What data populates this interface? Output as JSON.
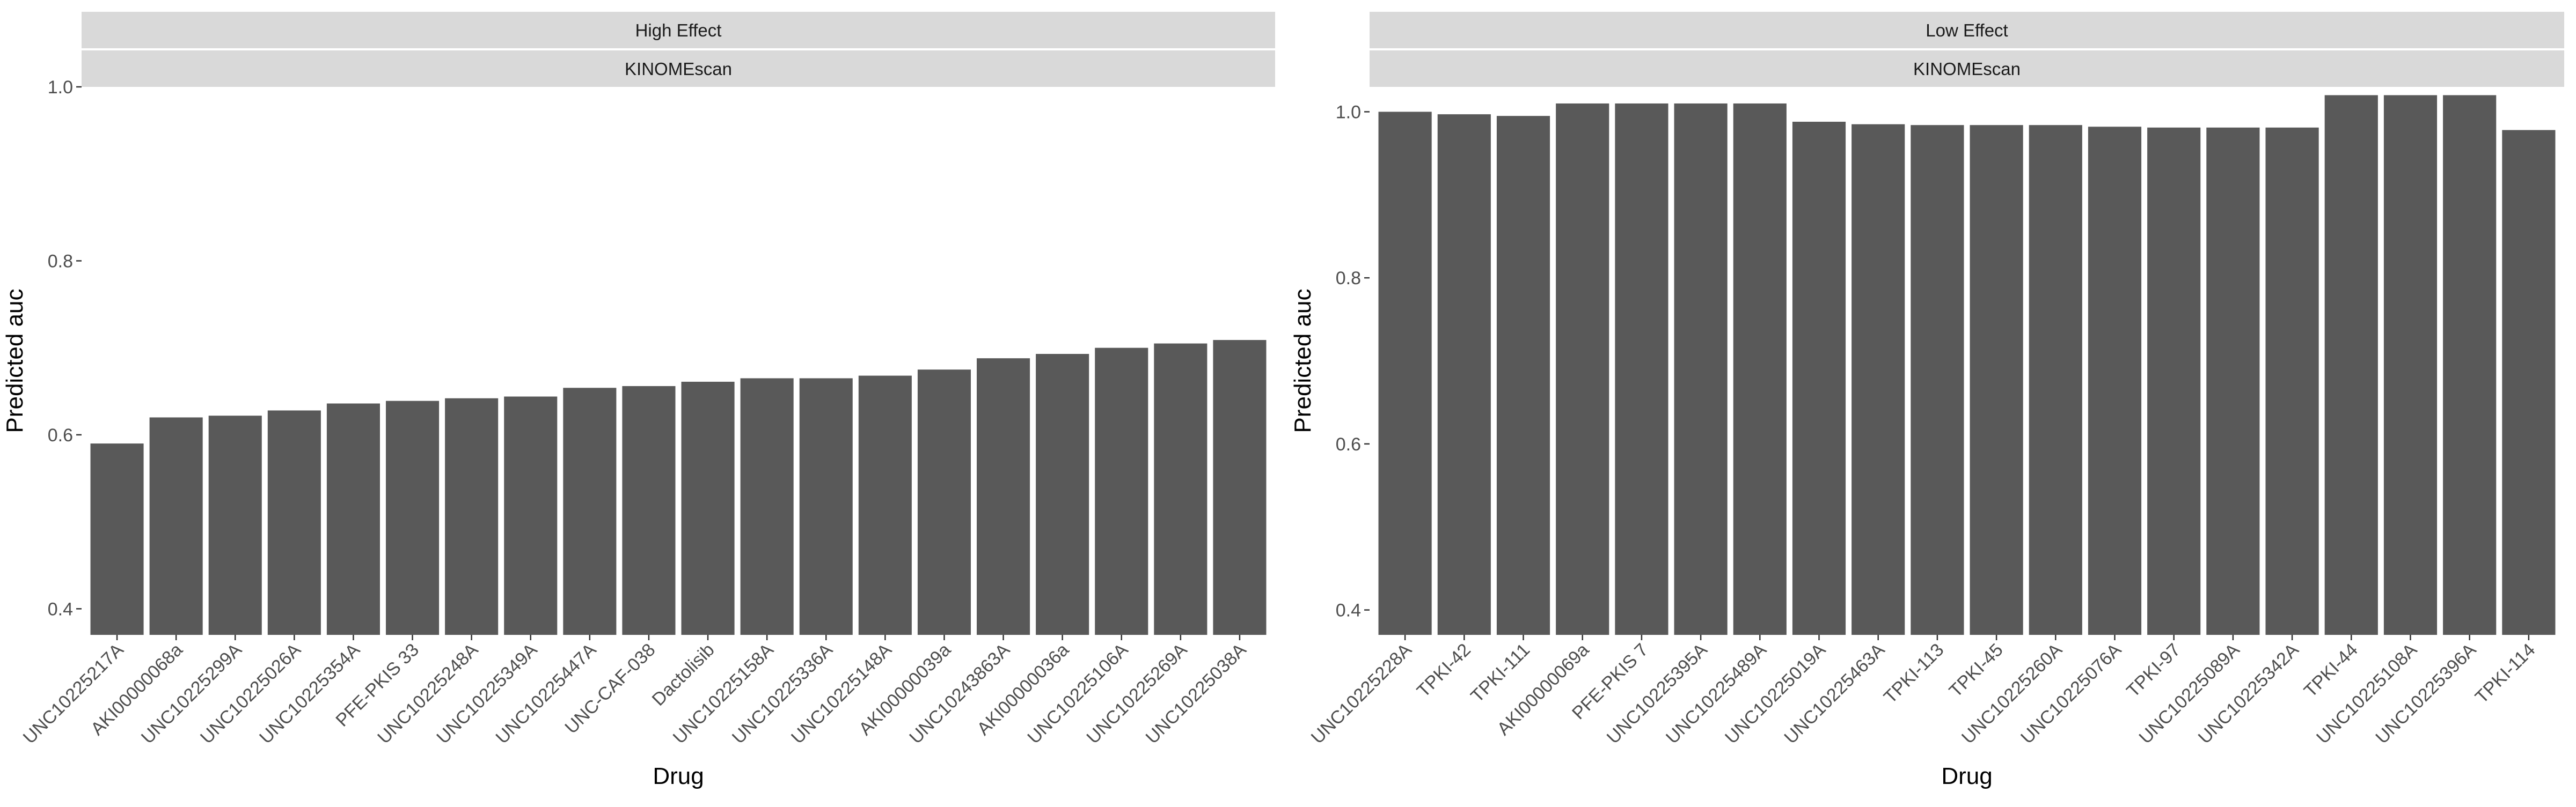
{
  "chart_data": [
    {
      "type": "bar",
      "facet_labels": [
        "High Effect",
        "KINOMEscan"
      ],
      "xlabel": "Drug",
      "ylabel": "Predicted auc",
      "ylim": [
        0.37,
        1.0
      ],
      "yticks": [
        0.4,
        0.6,
        0.8,
        1.0
      ],
      "ytick_labels": [
        "0.4",
        "0.6",
        "0.8",
        "1.0"
      ],
      "categories": [
        "UNC10225217A",
        "AKI00000068a",
        "UNC10225299A",
        "UNC10225026A",
        "UNC10225354A",
        "PFE-PKIS 33",
        "UNC10225248A",
        "UNC10225349A",
        "UNC10225447A",
        "UNC-CAF-038",
        "Dactolisib",
        "UNC10225158A",
        "UNC10225336A",
        "UNC10225148A",
        "AKI00000039a",
        "UNC10243863A",
        "AKI00000036a",
        "UNC10225106A",
        "UNC10225269A",
        "UNC10225038A"
      ],
      "values": [
        0.59,
        0.62,
        0.622,
        0.628,
        0.636,
        0.639,
        0.642,
        0.644,
        0.654,
        0.656,
        0.661,
        0.665,
        0.665,
        0.668,
        0.675,
        0.688,
        0.693,
        0.7,
        0.705,
        0.709
      ],
      "bar_color": "#595959",
      "panel_background": "#ffffff",
      "strip_background": "#d9d9d9",
      "grid": false
    },
    {
      "type": "bar",
      "facet_labels": [
        "Low Effect",
        "KINOMEscan"
      ],
      "xlabel": "Drug",
      "ylabel": "Predicted auc",
      "ylim": [
        0.37,
        1.03
      ],
      "yticks": [
        0.4,
        0.6,
        0.8,
        1.0
      ],
      "ytick_labels": [
        "0.4",
        "0.6",
        "0.8",
        "1.0"
      ],
      "categories": [
        "UNC10225228A",
        "TPKI-42",
        "TPKI-111",
        "AKI00000069a",
        "PFE-PKIS 7",
        "UNC10225395A",
        "UNC10225489A",
        "UNC10225019A",
        "UNC10225463A",
        "TPKI-113",
        "TPKI-45",
        "UNC10225260A",
        "UNC10225076A",
        "TPKI-97",
        "UNC10225089A",
        "UNC10225342A",
        "TPKI-44",
        "UNC10225108A",
        "UNC10225396A",
        "TPKI-114"
      ],
      "values": [
        1.0,
        0.997,
        0.995,
        1.01,
        1.01,
        1.01,
        1.01,
        0.988,
        0.985,
        0.984,
        0.984,
        0.984,
        0.982,
        0.981,
        0.981,
        0.981,
        1.02,
        1.02,
        1.02,
        0.978
      ],
      "bar_color": "#595959",
      "panel_background": "#ffffff",
      "strip_background": "#d9d9d9",
      "grid": false
    }
  ]
}
